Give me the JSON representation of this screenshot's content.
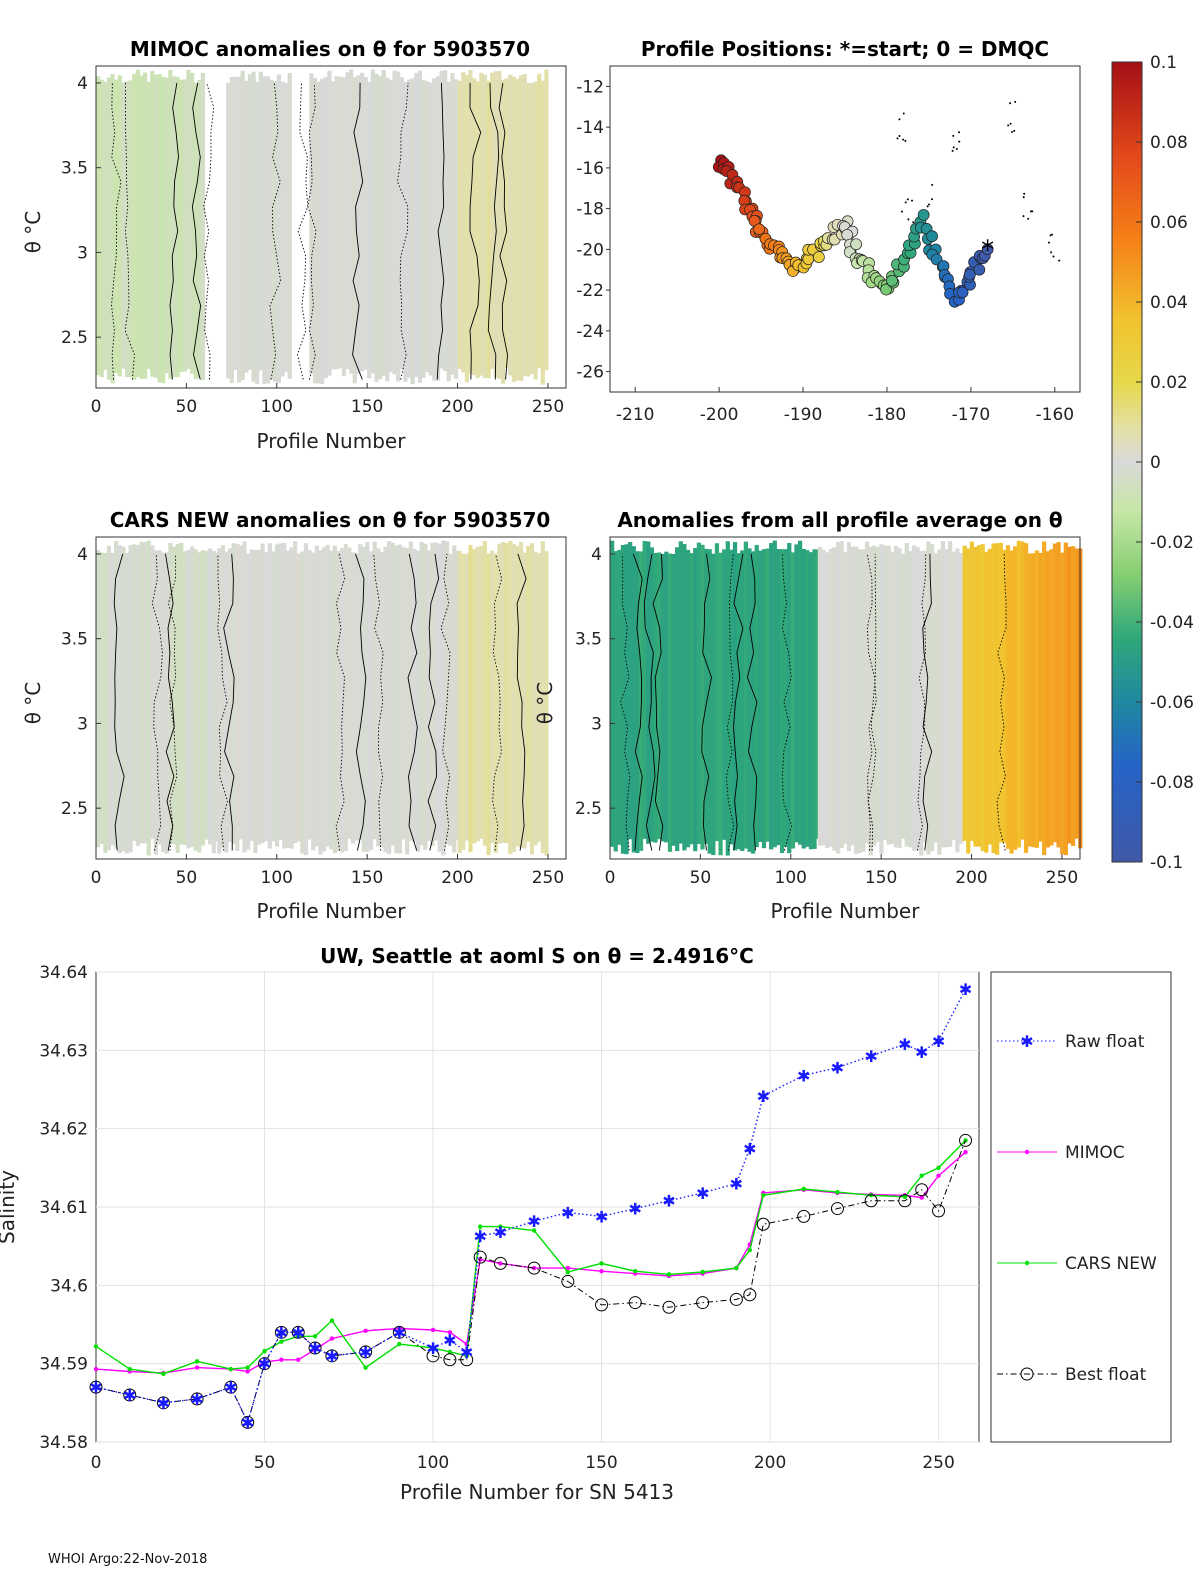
{
  "footer": "WHOI Argo:22-Nov-2018",
  "colorbar": {
    "ticks": [
      "0.1",
      "0.08",
      "0.06",
      "0.04",
      "0.02",
      "0",
      "-0.02",
      "-0.04",
      "-0.06",
      "-0.08",
      "-0.1"
    ],
    "range": [
      -0.1,
      0.1
    ]
  },
  "chart_data": [
    {
      "type": "heatmap",
      "id": "mimoc",
      "title": "MIMOC anomalies on θ  for 5903570",
      "xlabel": "Profile Number",
      "ylabel": "θ °C",
      "xticks": [
        "0",
        "50",
        "100",
        "150",
        "200",
        "250"
      ],
      "yticks": [
        "2.5",
        "3",
        "3.5",
        "4"
      ],
      "xlim": [
        0,
        260
      ],
      "ylim": [
        2.2,
        4.1
      ],
      "gaps": [
        [
          60,
          72
        ],
        [
          107,
          118
        ]
      ],
      "anomaly_by_profile_range": [
        {
          "from": 0,
          "to": 60,
          "value": -0.008
        },
        {
          "from": 72,
          "to": 200,
          "value": 0.0
        },
        {
          "from": 200,
          "to": 250,
          "value": 0.014
        }
      ]
    },
    {
      "type": "scatter",
      "id": "positions",
      "title": "Profile Positions: *=start; 0 = DMQC",
      "xticks": [
        "-210",
        "-200",
        "-190",
        "-180",
        "-170",
        "-160"
      ],
      "yticks": [
        "-12",
        "-14",
        "-16",
        "-18",
        "-20",
        "-22",
        "-24",
        "-26"
      ],
      "xlim": [
        -213,
        -157
      ],
      "ylim": [
        -27,
        -11
      ],
      "track": [
        {
          "lon": -200,
          "lat": -15.5
        },
        {
          "lon": -198,
          "lat": -16.8
        },
        {
          "lon": -196,
          "lat": -18.2
        },
        {
          "lon": -195,
          "lat": -19.3
        },
        {
          "lon": -193,
          "lat": -20.2
        },
        {
          "lon": -191,
          "lat": -21.0
        },
        {
          "lon": -189,
          "lat": -20.3
        },
        {
          "lon": -187,
          "lat": -19.5
        },
        {
          "lon": -185,
          "lat": -18.8
        },
        {
          "lon": -184,
          "lat": -20.0
        },
        {
          "lon": -182,
          "lat": -21.2
        },
        {
          "lon": -180,
          "lat": -22.0
        },
        {
          "lon": -178,
          "lat": -20.5
        },
        {
          "lon": -176,
          "lat": -18.5
        },
        {
          "lon": -174,
          "lat": -20.5
        },
        {
          "lon": -172,
          "lat": -22.5
        },
        {
          "lon": -170,
          "lat": -21.2
        },
        {
          "lon": -168,
          "lat": -20.0
        }
      ]
    },
    {
      "type": "heatmap",
      "id": "cars",
      "title": "CARS NEW anomalies on θ for 5903570",
      "xlabel": "Profile Number",
      "ylabel": "θ °C",
      "xticks": [
        "0",
        "50",
        "100",
        "150",
        "200",
        "250"
      ],
      "yticks": [
        "2.5",
        "3",
        "3.5",
        "4"
      ],
      "xlim": [
        0,
        260
      ],
      "ylim": [
        2.2,
        4.1
      ],
      "anomaly_by_profile_range": [
        {
          "from": 0,
          "to": 65,
          "value": -0.003
        },
        {
          "from": 65,
          "to": 200,
          "value": 0.0
        },
        {
          "from": 200,
          "to": 250,
          "value": 0.014
        }
      ]
    },
    {
      "type": "heatmap",
      "id": "avg",
      "title": "Anomalies from all profile average on θ",
      "xlabel": "Profile Number",
      "ylabel": "θ °C",
      "xticks": [
        "0",
        "50",
        "100",
        "150",
        "200",
        "250"
      ],
      "yticks": [
        "2.5",
        "3",
        "3.5",
        "4"
      ],
      "xlim": [
        0,
        260
      ],
      "ylim": [
        2.2,
        4.1
      ],
      "anomaly_by_profile_range": [
        {
          "from": 0,
          "to": 115,
          "value": -0.045
        },
        {
          "from": 115,
          "to": 195,
          "value": 0.0
        },
        {
          "from": 195,
          "to": 260,
          "value": 0.03
        }
      ]
    },
    {
      "type": "line",
      "id": "salinity",
      "title": "UW, Seattle at aoml S on θ = 2.4916°C",
      "xlabel": "Profile Number for SN 5413",
      "ylabel": "Salinity",
      "xticks": [
        "0",
        "50",
        "100",
        "150",
        "200",
        "250"
      ],
      "yticks": [
        "34.58",
        "34.59",
        "34.6",
        "34.61",
        "34.62",
        "34.63",
        "34.64"
      ],
      "xlim": [
        0,
        262
      ],
      "ylim": [
        34.58,
        34.64
      ],
      "x": [
        0,
        10,
        20,
        30,
        40,
        45,
        50,
        55,
        60,
        65,
        70,
        80,
        90,
        100,
        105,
        110,
        114,
        120,
        130,
        140,
        150,
        160,
        170,
        180,
        190,
        194,
        198,
        210,
        220,
        230,
        240,
        245,
        250,
        258
      ],
      "series": [
        {
          "name": "Raw float",
          "color": "#1a1aff",
          "values": [
            34.587,
            34.586,
            34.585,
            34.5855,
            34.587,
            34.5825,
            34.59,
            34.594,
            34.594,
            34.592,
            34.591,
            34.5915,
            34.594,
            34.592,
            34.593,
            34.5915,
            34.6063,
            34.6068,
            34.6082,
            34.6093,
            34.6088,
            34.6098,
            34.6108,
            34.6118,
            34.613,
            34.6175,
            34.6242,
            34.6268,
            34.6278,
            34.6293,
            34.6308,
            34.6298,
            34.6312,
            34.6378
          ]
        },
        {
          "name": "MIMOC",
          "color": "#ff00ff",
          "values": [
            34.5893,
            34.589,
            34.5888,
            34.5895,
            34.5893,
            34.589,
            34.5902,
            34.5905,
            34.5905,
            34.5918,
            34.5932,
            34.5942,
            34.5945,
            34.5943,
            34.594,
            34.5925,
            34.6033,
            34.6028,
            34.6022,
            34.6022,
            34.6018,
            34.6015,
            34.6012,
            34.6015,
            34.6022,
            34.6052,
            34.6118,
            34.6122,
            34.6118,
            34.6116,
            34.6115,
            34.6112,
            34.614,
            34.617
          ]
        },
        {
          "name": "CARS NEW",
          "color": "#00e000",
          "values": [
            34.5922,
            34.5893,
            34.5887,
            34.5903,
            34.5893,
            34.5895,
            34.5916,
            34.5928,
            34.5935,
            34.5935,
            34.5955,
            34.5895,
            34.5925,
            34.592,
            34.5915,
            34.591,
            34.6075,
            34.6075,
            34.607,
            34.6017,
            34.6028,
            34.6018,
            34.6014,
            34.6017,
            34.6022,
            34.6045,
            34.6115,
            34.6123,
            34.6119,
            34.6115,
            34.6113,
            34.614,
            34.615,
            34.6185
          ]
        },
        {
          "name": "Best float",
          "color": "#000000",
          "values": [
            34.587,
            34.586,
            34.585,
            34.5855,
            34.587,
            34.5825,
            34.59,
            34.594,
            34.594,
            34.592,
            34.591,
            34.5915,
            34.594,
            34.591,
            34.5905,
            34.5905,
            34.6036,
            34.6028,
            34.6022,
            34.6005,
            34.5975,
            34.5978,
            34.5972,
            34.5978,
            34.5982,
            34.5988,
            34.6078,
            34.6088,
            34.6098,
            34.6108,
            34.6108,
            34.6122,
            34.6095,
            34.6185
          ]
        }
      ],
      "legend": [
        "Raw float",
        "MIMOC",
        "CARS NEW",
        "Best float"
      ]
    }
  ]
}
